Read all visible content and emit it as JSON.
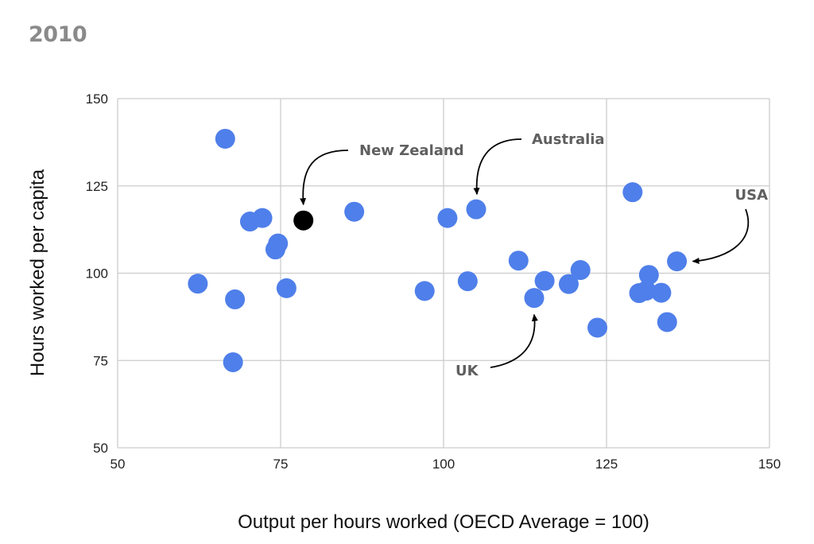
{
  "title": "2010",
  "chart_data": {
    "type": "scatter",
    "title": "2010",
    "xlabel": "Output per hours worked (OECD Average = 100)",
    "ylabel": "Hours worked per capita",
    "xlim": [
      50,
      150
    ],
    "ylim": [
      50,
      150
    ],
    "xticks": [
      50,
      75,
      100,
      125,
      150
    ],
    "yticks": [
      50,
      75,
      100,
      125,
      150
    ],
    "grid": true,
    "colors": {
      "default": "#4f7fea",
      "highlight": "#000000",
      "grid": "#cccccc"
    },
    "points": [
      {
        "x": 66.5,
        "y": 138.5
      },
      {
        "x": 70.3,
        "y": 114.8
      },
      {
        "x": 72.2,
        "y": 115.8
      },
      {
        "x": 74.6,
        "y": 108.5
      },
      {
        "x": 74.2,
        "y": 106.8
      },
      {
        "x": 62.3,
        "y": 97.0
      },
      {
        "x": 68.0,
        "y": 92.5
      },
      {
        "x": 75.9,
        "y": 95.7
      },
      {
        "x": 67.7,
        "y": 74.5
      },
      {
        "x": 86.3,
        "y": 117.6
      },
      {
        "x": 100.6,
        "y": 115.8
      },
      {
        "x": 105.0,
        "y": 118.3
      },
      {
        "x": 97.1,
        "y": 94.9
      },
      {
        "x": 103.7,
        "y": 97.7
      },
      {
        "x": 111.5,
        "y": 103.6
      },
      {
        "x": 113.9,
        "y": 92.9
      },
      {
        "x": 115.5,
        "y": 97.8
      },
      {
        "x": 119.2,
        "y": 96.9
      },
      {
        "x": 121.0,
        "y": 100.9
      },
      {
        "x": 123.6,
        "y": 84.4
      },
      {
        "x": 129.0,
        "y": 123.2
      },
      {
        "x": 130.0,
        "y": 94.3
      },
      {
        "x": 131.1,
        "y": 95.0
      },
      {
        "x": 131.5,
        "y": 99.5
      },
      {
        "x": 133.4,
        "y": 94.4
      },
      {
        "x": 134.3,
        "y": 86.0
      },
      {
        "x": 135.8,
        "y": 103.4
      },
      {
        "x": 78.5,
        "y": 115.1,
        "highlight": true
      }
    ],
    "annotations": [
      {
        "text": "New Zealand",
        "x": 78.5,
        "y": 115.1
      },
      {
        "text": "Australia",
        "x": 105.0,
        "y": 118.3
      },
      {
        "text": "USA",
        "x": 135.8,
        "y": 103.4
      },
      {
        "text": "UK",
        "x": 113.9,
        "y": 92.9
      }
    ]
  }
}
